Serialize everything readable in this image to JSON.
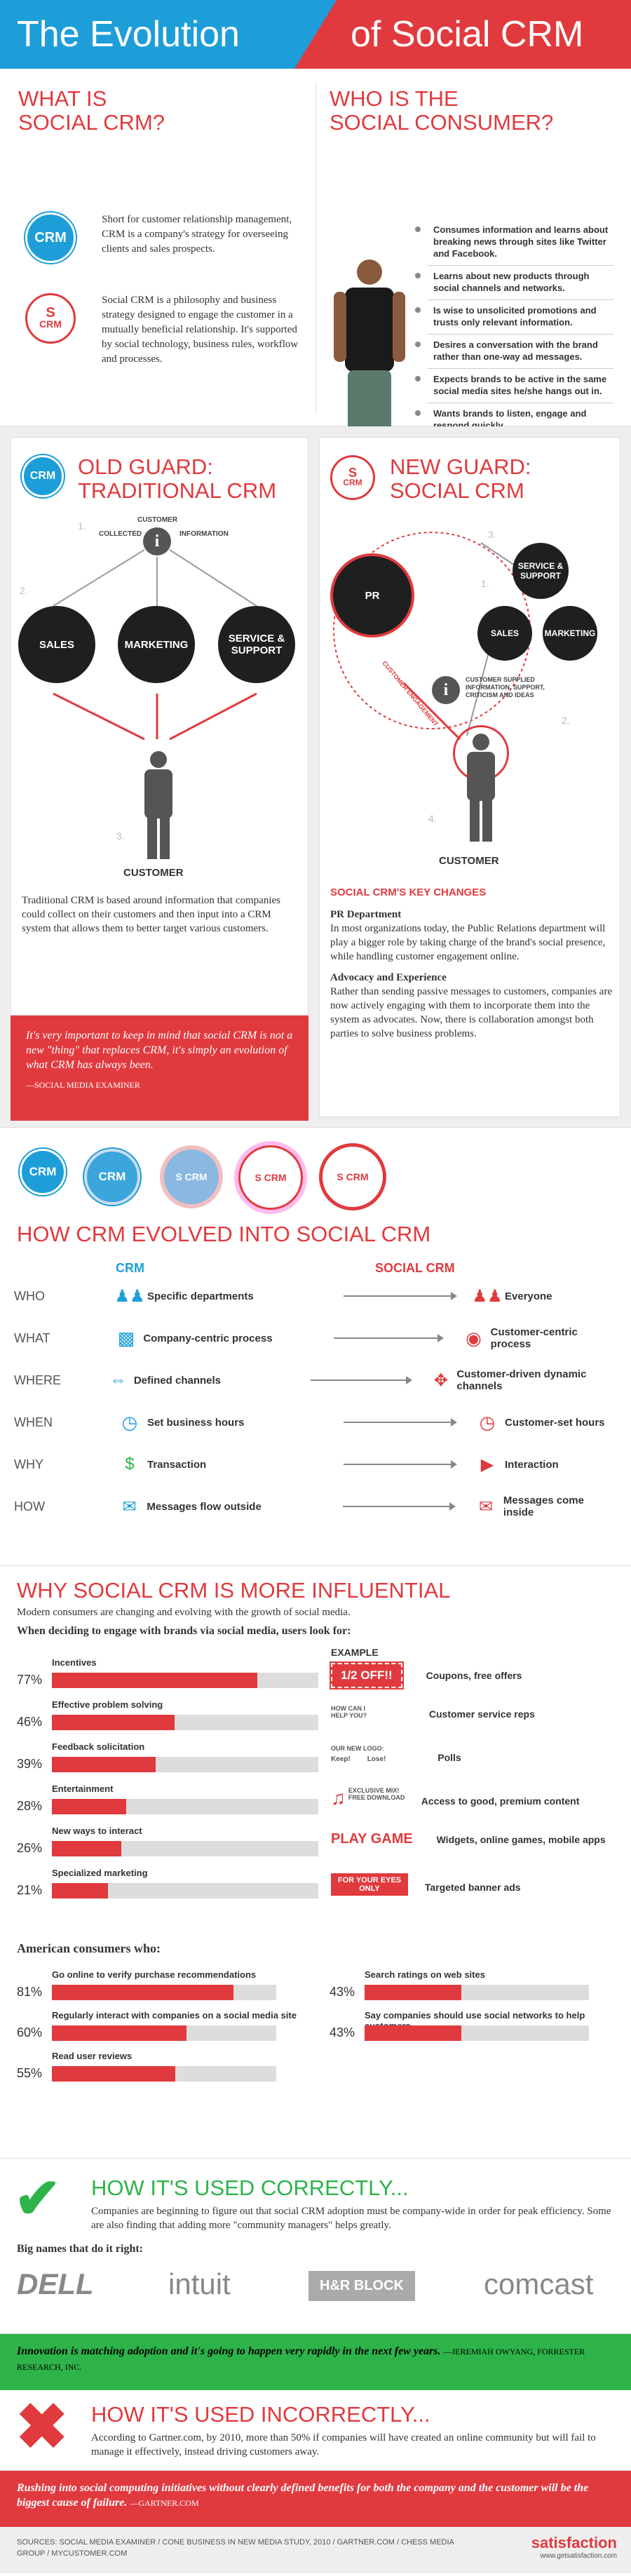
{
  "title": {
    "left": "The Evolution",
    "right": "of Social CRM"
  },
  "what_is": {
    "heading1": "WHAT IS",
    "heading2": "SOCIAL CRM?",
    "crm_badge": "CRM",
    "social_badge_s": "S",
    "social_badge_crm": "CRM",
    "crm_text": "Short for customer relationship management, CRM is a company's strategy for overseeing clients and sales prospects.",
    "social_text": "Social CRM is a philosophy and business strategy designed to engage the customer in a mutually beneficial relationship. It's supported by social technology, business rules, workflow and processes."
  },
  "who_is": {
    "heading1": "WHO IS THE",
    "heading2": "SOCIAL CONSUMER?",
    "items": [
      "Consumes information and learns about breaking news through sites like Twitter and Facebook.",
      "Learns about new products through social channels and networks.",
      "Is wise to unsolicited promotions and trusts only relevant information.",
      "Desires a conversation with the brand rather than one-way ad messages.",
      "Expects brands to be active in the same social media sites he/she hangs out in.",
      "Wants brands to listen, engage and respond quickly."
    ]
  },
  "old_guard": {
    "heading1": "OLD GUARD:",
    "heading2": "TRADITIONAL CRM",
    "badge": "CRM",
    "customer_top": "CUSTOMER",
    "collected": "COLLECTED",
    "information": "INFORMATION",
    "n1": "1.",
    "n2": "2.",
    "n3": "3.",
    "balls": [
      "SALES",
      "MARKETING",
      "SERVICE & SUPPORT"
    ],
    "customer": "CUSTOMER",
    "text": "Traditional CRM is based around information that companies could collect on their customers and then input into a CRM system that allows them to better target various customers."
  },
  "new_guard": {
    "heading1": "NEW GUARD:",
    "heading2": "SOCIAL CRM",
    "badge_s": "S",
    "badge_crm": "CRM",
    "balls": [
      "PR",
      "SERVICE & SUPPORT",
      "SALES",
      "MARKETING"
    ],
    "supplied": "CUSTOMER SUPPLIED INFORMATION, SUPPORT, CRITICISM AND IDEAS",
    "engagement": "CUSTOMER ENGAGEMENT",
    "n1": "1.",
    "n2": "2.",
    "n3": "3.",
    "n4": "4.",
    "customer": "CUSTOMER",
    "changes_title": "SOCIAL CRM'S KEY CHANGES",
    "pr_title": "PR Department",
    "pr_text": "In most organizations today, the Public Relations department will play a bigger role by taking charge of the brand's social presence, while handling customer engagement online.",
    "adv_title": "Advocacy and Experience",
    "adv_text": "Rather than sending passive messages to customers, companies are now actively engaging with them to incorporate them into the system as advocates. Now, there is collaboration amongst both parties to solve business problems."
  },
  "quote1": {
    "text": "It's very important to keep in mind that social CRM is not a new \"thing\" that replaces CRM, it's simply an evolution of what CRM has always been.",
    "source": "—SOCIAL MEDIA EXAMINER"
  },
  "evolution_badges": [
    "CRM",
    "CRM",
    "S CRM",
    "S CRM",
    "S CRM"
  ],
  "evolved": {
    "heading": "HOW CRM EVOLVED INTO SOCIAL CRM",
    "col1": "CRM",
    "col2": "SOCIAL CRM",
    "rows": [
      {
        "label": "WHO",
        "crm": "Specific departments",
        "social": "Everyone"
      },
      {
        "label": "WHAT",
        "crm": "Company-centric process",
        "social": "Customer-centric process"
      },
      {
        "label": "WHERE",
        "crm": "Defined channels",
        "social": "Customer-driven dynamic channels"
      },
      {
        "label": "WHEN",
        "crm": "Set business hours",
        "social": "Customer-set hours"
      },
      {
        "label": "WHY",
        "crm": "Transaction",
        "social": "Interaction"
      },
      {
        "label": "HOW",
        "crm": "Messages flow outside",
        "social": "Messages come inside"
      }
    ]
  },
  "influential": {
    "heading": "WHY SOCIAL CRM IS MORE INFLUENTIAL",
    "sub": "Modern consumers are changing and evolving with the growth of social media.",
    "lead": "When deciding to engage with brands via social media, users look for:",
    "example_header": "EXAMPLE"
  },
  "chart_data": [
    {
      "type": "bar",
      "orientation": "horizontal",
      "title": "When deciding to engage with brands via social media, users look for:",
      "categories": [
        "Incentives",
        "Effective problem solving",
        "Feedback solicitation",
        "Entertainment",
        "New ways to interact",
        "Specialized marketing"
      ],
      "values": [
        77,
        46,
        39,
        28,
        26,
        21
      ],
      "value_labels": [
        "77%",
        "46%",
        "39%",
        "28%",
        "26%",
        "21%"
      ],
      "xlim": [
        0,
        100
      ]
    },
    {
      "type": "bar",
      "orientation": "horizontal",
      "title": "American consumers who:",
      "categories": [
        "Go online to verify purchase recommendations",
        "Regularly interact with companies on a social media site",
        "Read user reviews",
        "Search ratings on web sites",
        "Say companies should use social networks to help customers"
      ],
      "values": [
        81,
        60,
        55,
        43,
        43
      ],
      "value_labels": [
        "81%",
        "60%",
        "55%",
        "43%",
        "43%"
      ],
      "xlim": [
        0,
        100
      ]
    }
  ],
  "examples": [
    {
      "art": "1/2 OFF!!",
      "caption": "Coupons, free offers"
    },
    {
      "art": "HOW CAN I HELP YOU?",
      "caption": "Customer service reps"
    },
    {
      "art": "OUR NEW LOGO:",
      "keep": "Keep!",
      "lose": "Lose!",
      "caption": "Polls"
    },
    {
      "art": "EXCLUSIVE MIX! FREE DOWNLOAD",
      "caption": "Access to good, premium content"
    },
    {
      "art": "PLAY GAME",
      "caption": "Widgets, online games, mobile apps"
    },
    {
      "art": "FOR YOUR EYES ONLY",
      "caption": "Targeted banner ads"
    }
  ],
  "american_title": "American consumers who:",
  "correct": {
    "heading": "HOW IT'S USED CORRECTLY...",
    "text": "Companies are beginning to figure out that social CRM adoption must be company-wide in order for peak efficiency. Some are also finding that adding more \"community managers\" helps greatly.",
    "names_title": "Big names that do it right:",
    "logos": [
      "DELL",
      "intuit",
      "H&R BLOCK",
      "comcast"
    ]
  },
  "quote2": {
    "text": "Innovation is matching adoption and it's going to happen very rapidly in the next few years.",
    "source": "—JEREMIAH OWYANG, FORRESTER RESEARCH, INC."
  },
  "incorrect": {
    "heading": "HOW IT'S USED INCORRECTLY...",
    "text": "According to Gartner.com, by 2010, more than 50% if companies will have created an online community but will fail to manage it effectively, instead driving customers away."
  },
  "quote3": {
    "text": "Rushing into social computing initiatives without clearly defined benefits for both the company and the customer will be the biggest cause of failure.",
    "source": "—GARTNER.COM"
  },
  "sources": "SOURCES: SOCIAL MEDIA EXAMINER / CONE BUSINESS IN NEW MEDIA STUDY, 2010 / GARTNER.COM / CHESS MEDIA GROUP / MYCUSTOMER.COM",
  "brand": {
    "name": "satisfaction",
    "url": "www.getsatisfaction.com"
  },
  "colors": {
    "blue": "#1d9ed8",
    "red": "#e03a3e",
    "green": "#2db34a",
    "dark": "#1f1f1f"
  }
}
